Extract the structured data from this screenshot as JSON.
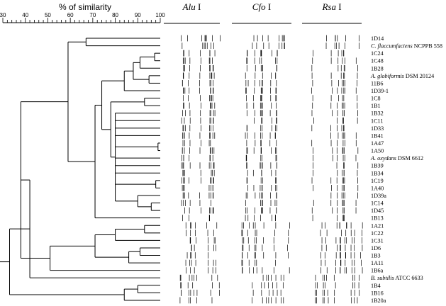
{
  "axis": {
    "title": "% of similarity",
    "ticks": [
      30,
      40,
      50,
      60,
      70,
      80,
      90,
      100
    ],
    "range": [
      30,
      100
    ]
  },
  "enzymes": [
    {
      "name": "Alu",
      "suffix": " I"
    },
    {
      "name": "Cfo",
      "suffix": " I"
    },
    {
      "name": "Rsa",
      "suffix": " I"
    }
  ],
  "strains": [
    {
      "id": "ID14",
      "italic": "",
      "rest": "1D14"
    },
    {
      "id": "Cfl",
      "italic": "C. flaccumfaciens",
      "rest": " NCPPB 558"
    },
    {
      "id": "IC24",
      "italic": "",
      "rest": "1C24"
    },
    {
      "id": "IC48",
      "italic": "",
      "rest": "1C48"
    },
    {
      "id": "IB28",
      "italic": "",
      "rest": "1B28"
    },
    {
      "id": "Aglo",
      "italic": "A. globiformis",
      "rest": " DSM 20124"
    },
    {
      "id": "IIB6",
      "italic": "",
      "rest": "11B6"
    },
    {
      "id": "ID39-1",
      "italic": "",
      "rest": "1D39-1"
    },
    {
      "id": "IC8",
      "italic": "",
      "rest": "1C8"
    },
    {
      "id": "IB1",
      "italic": "",
      "rest": "1B1"
    },
    {
      "id": "IB32",
      "italic": "",
      "rest": "1B32"
    },
    {
      "id": "IC11",
      "italic": "",
      "rest": "1C11"
    },
    {
      "id": "ID33",
      "italic": "",
      "rest": "1D33"
    },
    {
      "id": "IB41",
      "italic": "",
      "rest": "1B41"
    },
    {
      "id": "IA47",
      "italic": "",
      "rest": "1A47"
    },
    {
      "id": "IA50",
      "italic": "",
      "rest": "1A50"
    },
    {
      "id": "Aoxy",
      "italic": "A. oxydans",
      "rest": " DSM 6612"
    },
    {
      "id": "IB39",
      "italic": "",
      "rest": "1B39"
    },
    {
      "id": "IB34",
      "italic": "",
      "rest": "1B34"
    },
    {
      "id": "IC19",
      "italic": "",
      "rest": "1C19"
    },
    {
      "id": "IA40",
      "italic": "",
      "rest": "1A40"
    },
    {
      "id": "ID39a",
      "italic": "",
      "rest": "1D39a"
    },
    {
      "id": "IC14",
      "italic": "",
      "rest": "1C14"
    },
    {
      "id": "ID45",
      "italic": "",
      "rest": "1D45"
    },
    {
      "id": "IB13",
      "italic": "",
      "rest": "1B13"
    },
    {
      "id": "IA21",
      "italic": "",
      "rest": "1A21"
    },
    {
      "id": "IC22",
      "italic": "",
      "rest": "1C22"
    },
    {
      "id": "IC31",
      "italic": "",
      "rest": "1C31"
    },
    {
      "id": "ID6",
      "italic": "",
      "rest": "1D6"
    },
    {
      "id": "IB3",
      "italic": "",
      "rest": "1B3"
    },
    {
      "id": "IA11",
      "italic": "",
      "rest": "1A11"
    },
    {
      "id": "IB6a",
      "italic": "",
      "rest": "1B6a"
    },
    {
      "id": "Bsub",
      "italic": "B. subtilis",
      "rest": " ATCC 6633"
    },
    {
      "id": "IB4",
      "italic": "",
      "rest": "1B4"
    },
    {
      "id": "IB16",
      "italic": "",
      "rest": "1B16"
    },
    {
      "id": "IB20a",
      "italic": "",
      "rest": "1B20a"
    }
  ],
  "dendrogram": [
    {
      "id": "n1",
      "sim": 97.5,
      "a": 2,
      "b": 3
    },
    {
      "id": "n2",
      "sim": 91,
      "a": "n1",
      "b": 4
    },
    {
      "id": "n3",
      "sim": 95,
      "a": 5,
      "b": 6
    },
    {
      "id": "n4",
      "sim": 88,
      "a": "n2",
      "b": "n3"
    },
    {
      "id": "n5",
      "sim": 84,
      "a": "n4",
      "b": 7
    },
    {
      "id": "n6",
      "sim": 93,
      "a": 8,
      "b": 9
    },
    {
      "id": "n7",
      "sim": 99,
      "a": 14,
      "b": 15
    },
    {
      "id": "n8",
      "sim": 98,
      "a": 19,
      "b": 20
    },
    {
      "id": "n9",
      "sim": 96,
      "a": 22,
      "b": 23
    },
    {
      "id": "n10",
      "sim": 90,
      "a": 21,
      "b": "n9"
    },
    {
      "id": "n11",
      "sim": 80,
      "a": [
        10,
        11,
        12,
        13,
        "n7",
        16,
        17,
        18,
        "n8"
      ],
      "b": "n10"
    },
    {
      "id": "n12",
      "sim": 78,
      "a": "n6",
      "b": "n11"
    },
    {
      "id": "n13",
      "sim": 74,
      "a": "n5",
      "b": "n12"
    },
    {
      "id": "n14",
      "sim": 71,
      "a": "n13",
      "b": 24
    },
    {
      "id": "n15",
      "sim": 67,
      "a": 0,
      "b": 1
    },
    {
      "id": "n16",
      "sim": 59,
      "a": "n15",
      "b": "n14"
    },
    {
      "id": "n17",
      "sim": 93,
      "a": 25,
      "b": 26
    },
    {
      "id": "n18",
      "sim": 80,
      "a": "n17",
      "b": 27
    },
    {
      "id": "n19",
      "sim": 91,
      "a": 28,
      "b": 29
    },
    {
      "id": "n20",
      "sim": 86,
      "a": "n19",
      "b": 30
    },
    {
      "id": "n21",
      "sim": 71,
      "a": "n18",
      "b": "n20"
    },
    {
      "id": "n22",
      "sim": 51,
      "a": "n21",
      "b": 31
    },
    {
      "id": "n23",
      "sim": 38,
      "a": "n16",
      "b": "n22"
    },
    {
      "id": "n24",
      "sim": 42,
      "a": 32,
      "b": "n23"
    },
    {
      "id": "n25",
      "sim": 90,
      "a": 33,
      "b": 34
    },
    {
      "id": "n26",
      "sim": 84,
      "a": "n25",
      "b": 35
    },
    {
      "id": "n27",
      "sim": 33,
      "a": "n24",
      "b": "n26"
    }
  ]
}
